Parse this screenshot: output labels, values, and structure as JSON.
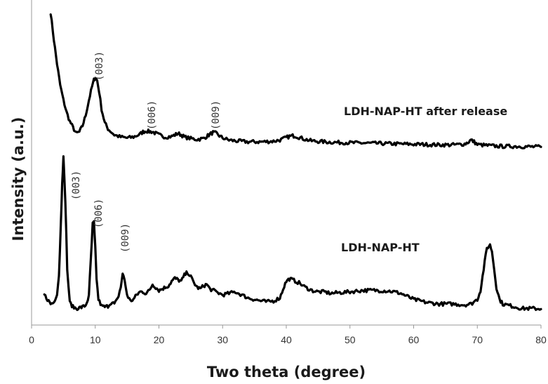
{
  "chart_data": {
    "type": "line",
    "xlabel": "Two theta (degree)",
    "ylabel": "Intensity (a.u.)",
    "xlim": [
      0,
      80
    ],
    "x_ticks": [
      "0",
      "10",
      "20",
      "30",
      "40",
      "50",
      "60",
      "70",
      "80"
    ],
    "y_ticks_shown": false,
    "grid": false,
    "legend": "none",
    "series": [
      {
        "name": "LDH-NAP-HT  after release",
        "color": "#000000",
        "baseline": 0.54,
        "x": [
          3.0,
          3.5,
          4.0,
          4.5,
          5.0,
          5.5,
          6.0,
          6.5,
          7.0,
          7.5,
          8.0,
          8.5,
          9.0,
          9.5,
          9.8,
          10.0,
          10.3,
          10.6,
          11.0,
          11.5,
          12.0,
          13.0,
          14.0,
          15.0,
          16.0,
          17.0,
          17.5,
          18.0,
          18.5,
          19.0,
          19.5,
          20.0,
          21.0,
          22.0,
          22.5,
          23.0,
          23.5,
          24.0,
          25.0,
          26.0,
          27.0,
          27.5,
          28.0,
          28.5,
          29.0,
          29.5,
          30.0,
          31.0,
          32.0,
          34.0,
          36.0,
          38.0,
          39.0,
          40.0,
          40.5,
          41.0,
          41.5,
          42.0,
          43.0,
          44.0,
          46.0,
          48.0,
          50.0,
          52.0,
          54.0,
          56.0,
          58.0,
          60.0,
          62.0,
          64.0,
          66.0,
          67.0,
          68.0,
          68.5,
          69.0,
          69.5,
          70.0,
          72.0,
          74.0,
          76.0,
          78.0,
          80.0
        ],
        "y": [
          1.0,
          0.91,
          0.83,
          0.76,
          0.71,
          0.67,
          0.64,
          0.62,
          0.6,
          0.605,
          0.625,
          0.66,
          0.71,
          0.755,
          0.777,
          0.785,
          0.775,
          0.74,
          0.68,
          0.635,
          0.615,
          0.595,
          0.588,
          0.585,
          0.588,
          0.597,
          0.605,
          0.608,
          0.606,
          0.605,
          0.6,
          0.595,
          0.588,
          0.59,
          0.595,
          0.6,
          0.595,
          0.588,
          0.583,
          0.58,
          0.583,
          0.59,
          0.597,
          0.603,
          0.6,
          0.592,
          0.585,
          0.578,
          0.575,
          0.572,
          0.572,
          0.574,
          0.578,
          0.586,
          0.59,
          0.592,
          0.591,
          0.587,
          0.58,
          0.575,
          0.572,
          0.57,
          0.569,
          0.568,
          0.567,
          0.566,
          0.565,
          0.564,
          0.563,
          0.562,
          0.562,
          0.563,
          0.565,
          0.57,
          0.578,
          0.572,
          0.563,
          0.559,
          0.557,
          0.557,
          0.556,
          0.555
        ]
      },
      {
        "name": "LDH-NAP-HT",
        "color": "#000000",
        "baseline": 0.0,
        "x": [
          2.0,
          2.5,
          3.0,
          3.5,
          4.0,
          4.3,
          4.6,
          4.8,
          5.0,
          5.3,
          5.6,
          6.0,
          6.5,
          7.0,
          7.5,
          8.0,
          8.5,
          9.0,
          9.3,
          9.6,
          9.8,
          10.0,
          10.2,
          10.5,
          11.0,
          11.5,
          12.0,
          12.5,
          13.0,
          13.5,
          14.0,
          14.3,
          14.6,
          15.0,
          15.5,
          16.0,
          16.5,
          17.0,
          17.5,
          18.0,
          18.5,
          19.0,
          19.5,
          20.0,
          20.5,
          21.0,
          21.5,
          22.0,
          22.5,
          23.0,
          23.5,
          24.0,
          24.5,
          25.0,
          25.5,
          26.0,
          26.5,
          27.0,
          27.5,
          28.0,
          29.0,
          30.0,
          31.0,
          32.0,
          33.0,
          34.0,
          35.0,
          36.0,
          37.0,
          38.0,
          39.0,
          39.5,
          40.0,
          40.5,
          41.0,
          42.0,
          43.0,
          44.0,
          45.0,
          46.0,
          47.0,
          48.0,
          50.0,
          52.0,
          54.0,
          56.0,
          57.0,
          58.0,
          59.0,
          60.0,
          62.0,
          64.0,
          66.0,
          68.0,
          69.0,
          70.0,
          70.5,
          71.0,
          71.5,
          72.0,
          72.3,
          72.6,
          73.0,
          73.5,
          74.0,
          75.0,
          76.0,
          77.0,
          78.0,
          79.0,
          80.0
        ],
        "y": [
          0.065,
          0.05,
          0.035,
          0.04,
          0.07,
          0.13,
          0.3,
          0.44,
          0.52,
          0.38,
          0.15,
          0.04,
          0.025,
          0.02,
          0.022,
          0.025,
          0.03,
          0.06,
          0.18,
          0.3,
          0.305,
          0.22,
          0.12,
          0.05,
          0.028,
          0.025,
          0.028,
          0.04,
          0.035,
          0.05,
          0.09,
          0.135,
          0.115,
          0.065,
          0.045,
          0.05,
          0.065,
          0.075,
          0.075,
          0.07,
          0.08,
          0.1,
          0.09,
          0.08,
          0.085,
          0.09,
          0.095,
          0.11,
          0.12,
          0.115,
          0.11,
          0.13,
          0.14,
          0.125,
          0.105,
          0.09,
          0.085,
          0.095,
          0.1,
          0.085,
          0.075,
          0.065,
          0.07,
          0.075,
          0.065,
          0.055,
          0.05,
          0.045,
          0.042,
          0.045,
          0.055,
          0.085,
          0.11,
          0.118,
          0.115,
          0.105,
          0.09,
          0.08,
          0.075,
          0.075,
          0.07,
          0.072,
          0.075,
          0.08,
          0.08,
          0.078,
          0.075,
          0.07,
          0.06,
          0.05,
          0.04,
          0.035,
          0.035,
          0.032,
          0.035,
          0.05,
          0.08,
          0.15,
          0.22,
          0.23,
          0.21,
          0.16,
          0.09,
          0.05,
          0.035,
          0.03,
          0.025,
          0.02,
          0.02,
          0.02,
          0.018
        ]
      }
    ],
    "annotations": [
      {
        "text": "LDH-NAP-HT  after release",
        "series": 0
      },
      {
        "text": "LDH-NAP-HT",
        "series": 1
      },
      {
        "text": "(003)",
        "x": 10.3,
        "series": 0
      },
      {
        "text": "(006)",
        "x": 19.0,
        "series": 0
      },
      {
        "text": "(009)",
        "x": 28.7,
        "series": 0
      },
      {
        "text": "(003)",
        "x": 5.2,
        "series": 1
      },
      {
        "text": "(006)",
        "x": 9.7,
        "series": 1
      },
      {
        "text": "(009)",
        "x": 14.2,
        "series": 1
      }
    ]
  }
}
